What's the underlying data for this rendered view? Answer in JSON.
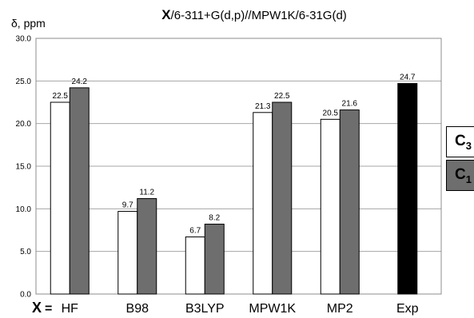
{
  "chart_data": {
    "type": "bar",
    "title": {
      "prefix": "X",
      "rest": "/6-311+G(d,p)//MPW1K/6-31G(d)"
    },
    "ylabel": "δ, ppm",
    "xprefix": {
      "symbol": "X",
      "equals": "="
    },
    "categories": [
      "HF",
      "B98",
      "B3LYP",
      "MPW1K",
      "MP2",
      "Exp"
    ],
    "ylim": [
      0,
      30
    ],
    "yticks": [
      "0.0",
      "5.0",
      "10.0",
      "15.0",
      "20.0",
      "25.0",
      "30.0"
    ],
    "grid": true,
    "legend_position": "right",
    "series": [
      {
        "name_main": "C",
        "name_sub": "3",
        "color": "#ffffff",
        "values": [
          22.5,
          9.7,
          6.7,
          21.3,
          20.5,
          null
        ]
      },
      {
        "name_main": "C",
        "name_sub": "1",
        "color": "#6e6e6e",
        "values": [
          24.2,
          11.2,
          8.2,
          22.5,
          21.6,
          null
        ]
      },
      {
        "color": "#000000",
        "values": [
          null,
          null,
          null,
          null,
          null,
          24.7
        ]
      }
    ],
    "data_labels": [
      [
        "22.5",
        "9.7",
        "6.7",
        "21.3",
        "20.5",
        null
      ],
      [
        "24.2",
        "11.2",
        "8.2",
        "22.5",
        "21.6",
        null
      ],
      [
        null,
        null,
        null,
        null,
        null,
        "24.7"
      ]
    ]
  }
}
